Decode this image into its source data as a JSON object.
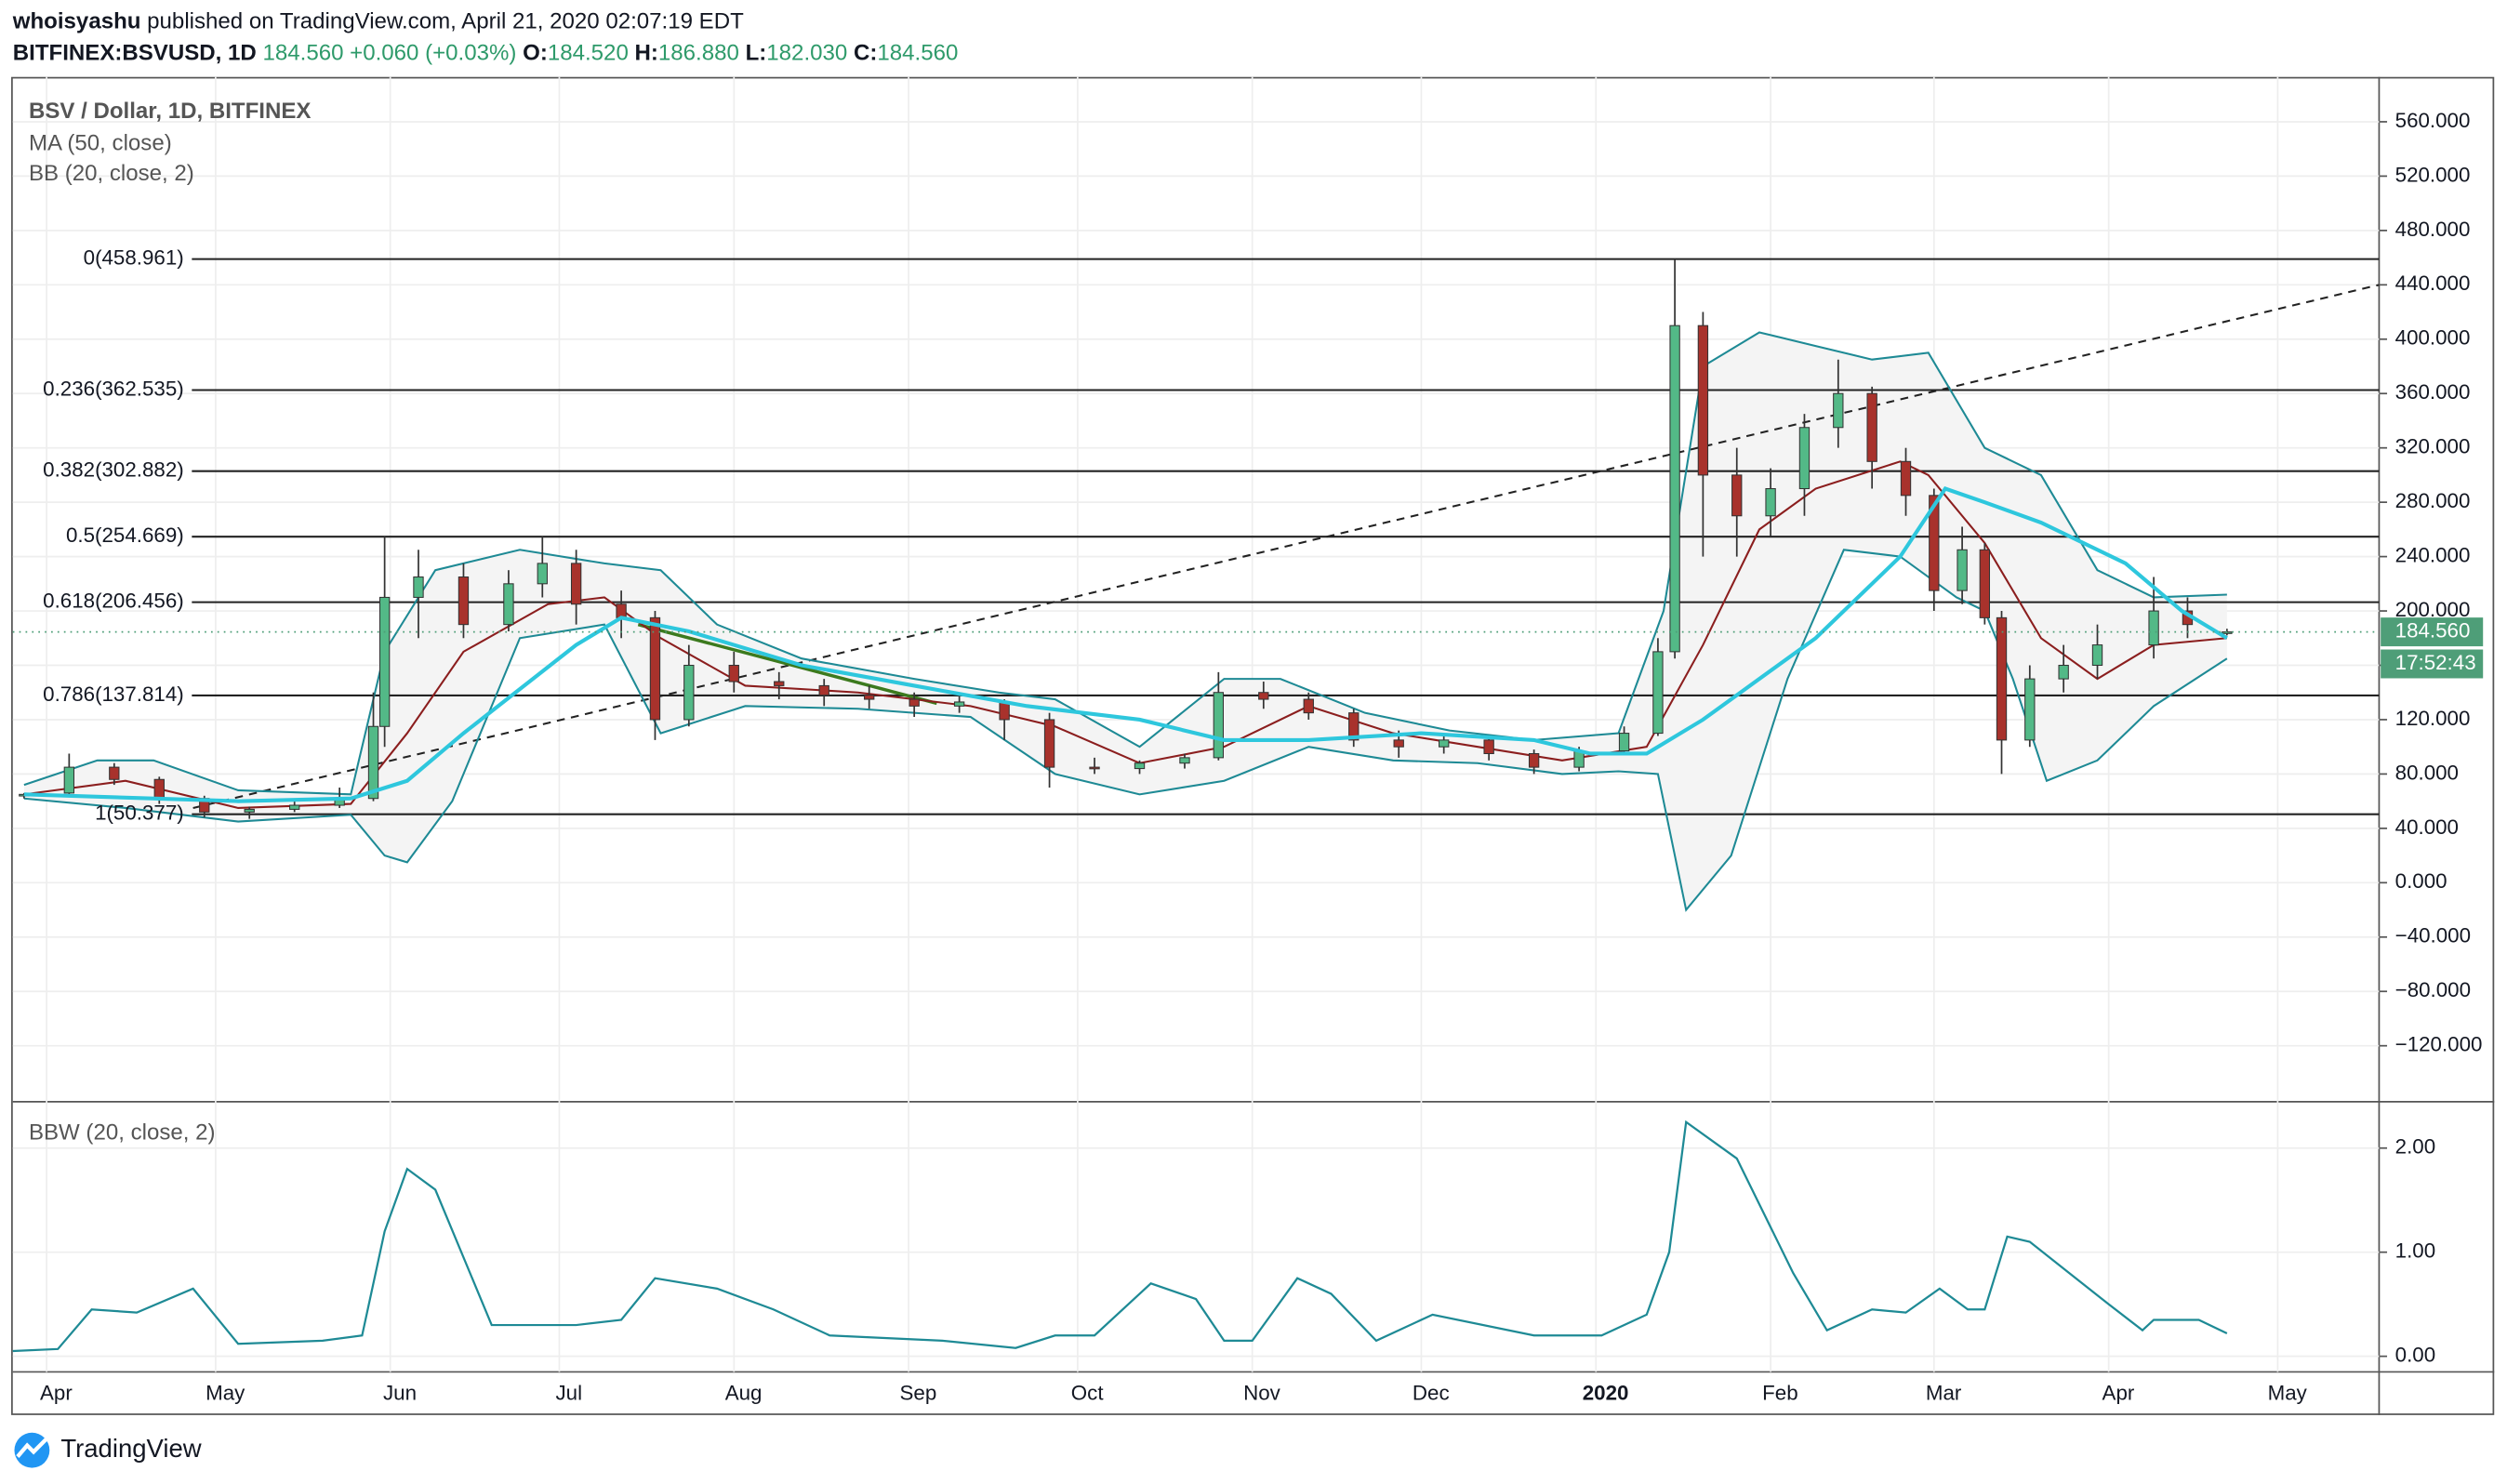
{
  "header": {
    "author": "whoisyashu",
    "published": "published on TradingView.com, April 21, 2020 02:07:19 EDT",
    "symbol": "BITFINEX:BSVUSD, 1D",
    "last": "184.560",
    "change": "+0.060 (+0.03%)",
    "o_label": "O:",
    "o": "184.520",
    "h_label": "H:",
    "h": "186.880",
    "l_label": "L:",
    "l": "182.030",
    "c_label": "C:",
    "c": "184.560"
  },
  "footer": {
    "brand": "TradingView"
  },
  "chart_data": {
    "type": "candlestick",
    "title": "BSV / Dollar, 1D, BITFINEX",
    "xlim": [
      0,
      420
    ],
    "xticks": [
      {
        "value": 6,
        "label": "Apr"
      },
      {
        "value": 36,
        "label": "May"
      },
      {
        "value": 67,
        "label": "Jun"
      },
      {
        "value": 97,
        "label": "Jul"
      },
      {
        "value": 128,
        "label": "Aug"
      },
      {
        "value": 159,
        "label": "Sep"
      },
      {
        "value": 189,
        "label": "Oct"
      },
      {
        "value": 220,
        "label": "Nov"
      },
      {
        "value": 250,
        "label": "Dec"
      },
      {
        "value": 281,
        "label": "2020"
      },
      {
        "value": 312,
        "label": "Feb"
      },
      {
        "value": 341,
        "label": "Mar"
      },
      {
        "value": 372,
        "label": "Apr"
      },
      {
        "value": 402,
        "label": "May"
      }
    ],
    "ylim": [
      -160,
      593
    ],
    "yticks": [
      {
        "value": 560,
        "label": "560.000"
      },
      {
        "value": 520,
        "label": "520.000"
      },
      {
        "value": 480,
        "label": "480.000"
      },
      {
        "value": 440,
        "label": "440.000"
      },
      {
        "value": 400,
        "label": "400.000"
      },
      {
        "value": 360,
        "label": "360.000"
      },
      {
        "value": 320,
        "label": "320.000"
      },
      {
        "value": 280,
        "label": "280.000"
      },
      {
        "value": 240,
        "label": "240.000"
      },
      {
        "value": 200,
        "label": "200.000"
      },
      {
        "value": 160,
        "label": "160.000"
      },
      {
        "value": 120,
        "label": "120.000"
      },
      {
        "value": 80,
        "label": "80.000"
      },
      {
        "value": 40,
        "label": "40.000"
      },
      {
        "value": 0,
        "label": "0.000"
      },
      {
        "value": -40,
        "label": "−40.000"
      },
      {
        "value": -80,
        "label": "−80.000"
      },
      {
        "value": -120,
        "label": "−120.000"
      }
    ],
    "grid": true,
    "up_color": "#53b987",
    "down_color": "#a8322c",
    "candles": {
      "x": [
        2,
        10,
        18,
        26,
        34,
        42,
        50,
        58,
        64,
        66,
        72,
        80,
        88,
        94,
        100,
        108,
        114,
        120,
        128,
        136,
        144,
        152,
        160,
        168,
        176,
        184,
        192,
        200,
        208,
        214,
        222,
        230,
        238,
        246,
        254,
        262,
        270,
        278,
        286,
        292,
        295,
        300,
        306,
        312,
        318,
        324,
        330,
        336,
        341,
        346,
        350,
        353,
        358,
        364,
        370,
        380,
        386,
        393
      ],
      "open": [
        64,
        66,
        85,
        76,
        62,
        52,
        54,
        57,
        62,
        115,
        210,
        225,
        190,
        220,
        235,
        205,
        195,
        120,
        160,
        148,
        145,
        138,
        135,
        130,
        133,
        120,
        85,
        84,
        88,
        92,
        140,
        135,
        125,
        105,
        100,
        105,
        95,
        85,
        97,
        110,
        170,
        410,
        300,
        270,
        290,
        335,
        360,
        310,
        285,
        215,
        245,
        195,
        105,
        150,
        160,
        175,
        200,
        184.52
      ],
      "high": [
        66,
        95,
        88,
        78,
        64,
        56,
        60,
        70,
        140,
        255,
        245,
        235,
        230,
        255,
        245,
        215,
        200,
        175,
        170,
        155,
        150,
        145,
        140,
        138,
        135,
        125,
        92,
        90,
        95,
        155,
        148,
        140,
        128,
        112,
        110,
        108,
        98,
        100,
        115,
        180,
        458.961,
        420,
        320,
        305,
        345,
        385,
        365,
        320,
        290,
        262,
        250,
        200,
        160,
        175,
        190,
        225,
        210,
        186.88
      ],
      "low": [
        62,
        64,
        72,
        58,
        48,
        47,
        52,
        55,
        60,
        100,
        180,
        180,
        185,
        210,
        190,
        180,
        105,
        115,
        140,
        135,
        130,
        128,
        122,
        125,
        105,
        70,
        80,
        80,
        84,
        90,
        128,
        120,
        100,
        92,
        95,
        90,
        80,
        82,
        95,
        108,
        165,
        240,
        240,
        255,
        270,
        320,
        290,
        270,
        200,
        205,
        190,
        80,
        100,
        140,
        150,
        165,
        180,
        182.03
      ],
      "close": [
        65,
        85,
        76,
        62,
        52,
        54,
        57,
        62,
        115,
        210,
        225,
        190,
        220,
        235,
        205,
        195,
        120,
        160,
        148,
        145,
        138,
        135,
        130,
        133,
        120,
        85,
        84,
        88,
        92,
        140,
        135,
        125,
        105,
        100,
        105,
        95,
        85,
        97,
        110,
        170,
        410,
        300,
        270,
        290,
        335,
        360,
        310,
        285,
        215,
        245,
        195,
        105,
        150,
        160,
        175,
        200,
        190,
        184.56
      ]
    },
    "ma": {
      "name": "MA (50, close)",
      "color": "#2ec7dd",
      "x": [
        2,
        40,
        60,
        70,
        80,
        100,
        108,
        120,
        140,
        160,
        180,
        200,
        215,
        230,
        250,
        270,
        280,
        290,
        300,
        320,
        335,
        343,
        350,
        360,
        375,
        385,
        393
      ],
      "values": [
        65,
        60,
        62,
        75,
        110,
        175,
        195,
        185,
        160,
        145,
        130,
        120,
        105,
        105,
        110,
        105,
        95,
        95,
        120,
        180,
        240,
        290,
        280,
        265,
        235,
        200,
        180
      ]
    },
    "bb": {
      "name": "BB (20, close, 2)",
      "basis_color": "#8b1e1e",
      "band_color": "#1e8a95",
      "fill": "#f4f4f4",
      "basis": {
        "x": [
          2,
          20,
          40,
          60,
          70,
          80,
          95,
          105,
          115,
          130,
          150,
          170,
          185,
          200,
          215,
          230,
          245,
          260,
          275,
          290,
          300,
          310,
          320,
          335,
          340,
          350,
          360,
          370,
          380,
          393
        ],
        "values": [
          65,
          75,
          55,
          58,
          110,
          170,
          205,
          210,
          180,
          145,
          140,
          130,
          115,
          88,
          100,
          130,
          110,
          100,
          90,
          100,
          175,
          260,
          290,
          310,
          300,
          250,
          180,
          150,
          175,
          180
        ]
      },
      "upper": {
        "x": [
          2,
          15,
          25,
          40,
          60,
          66,
          75,
          90,
          105,
          115,
          125,
          140,
          160,
          175,
          185,
          200,
          215,
          225,
          240,
          255,
          270,
          285,
          293,
          300,
          310,
          320,
          330,
          340,
          350,
          360,
          370,
          380,
          393
        ],
        "values": [
          72,
          90,
          90,
          68,
          65,
          170,
          230,
          245,
          235,
          230,
          190,
          165,
          150,
          140,
          135,
          100,
          150,
          150,
          125,
          112,
          105,
          110,
          200,
          380,
          405,
          395,
          385,
          390,
          320,
          300,
          230,
          210,
          212
        ]
      },
      "lower": {
        "x": [
          2,
          20,
          40,
          60,
          66,
          70,
          78,
          90,
          105,
          115,
          130,
          150,
          170,
          185,
          200,
          215,
          230,
          245,
          260,
          275,
          285,
          292,
          297,
          305,
          315,
          325,
          335,
          345,
          350,
          355,
          361,
          370,
          380,
          393
        ],
        "values": [
          62,
          55,
          45,
          50,
          20,
          15,
          60,
          180,
          190,
          110,
          130,
          128,
          122,
          80,
          65,
          75,
          100,
          90,
          88,
          80,
          82,
          80,
          -20,
          20,
          150,
          245,
          240,
          210,
          200,
          150,
          75,
          90,
          130,
          165
        ]
      }
    },
    "fib_levels": [
      {
        "label": "0(458.961)",
        "value": 458.961
      },
      {
        "label": "0.236(362.535)",
        "value": 362.535
      },
      {
        "label": "0.382(302.882)",
        "value": 302.882
      },
      {
        "label": "0.5(254.669)",
        "value": 254.669
      },
      {
        "label": "0.618(206.456)",
        "value": 206.456
      },
      {
        "label": "0.786(137.814)",
        "value": 137.814
      },
      {
        "label": "1(50.377)",
        "value": 50.377
      }
    ],
    "trendline": {
      "x": [
        32,
        420
      ],
      "values": [
        55,
        440
      ]
    },
    "downtrend": {
      "color": "#3c7a1e",
      "x": [
        111,
        164
      ],
      "values": [
        190,
        132
      ]
    },
    "price_line": {
      "value": 184.56,
      "label": "184.560",
      "timer": "17:52:43",
      "color": "#4e9e78"
    },
    "bbw": {
      "name": "BBW (20, close, 2)",
      "color": "#1e8a95",
      "ylim": [
        -0.15,
        2.43
      ],
      "yticks": [
        {
          "value": 2,
          "label": "2.00"
        },
        {
          "value": 1,
          "label": "1.00"
        },
        {
          "value": 0,
          "label": "0.00"
        }
      ],
      "x": [
        0,
        8,
        14,
        22,
        32,
        40,
        55,
        62,
        66,
        70,
        75,
        85,
        100,
        108,
        114,
        125,
        135,
        145,
        165,
        178,
        185,
        192,
        202,
        210,
        215,
        220,
        228,
        234,
        242,
        252,
        270,
        282,
        290,
        294,
        297,
        306,
        316,
        322,
        330,
        336,
        342,
        347,
        350,
        354,
        358,
        365,
        372,
        378,
        380,
        388,
        393
      ],
      "values": [
        0.05,
        0.07,
        0.45,
        0.42,
        0.65,
        0.12,
        0.15,
        0.2,
        1.2,
        1.8,
        1.6,
        0.3,
        0.3,
        0.35,
        0.75,
        0.65,
        0.45,
        0.2,
        0.15,
        0.08,
        0.2,
        0.2,
        0.7,
        0.55,
        0.15,
        0.15,
        0.75,
        0.6,
        0.15,
        0.4,
        0.2,
        0.2,
        0.4,
        1.0,
        2.25,
        1.9,
        0.8,
        0.25,
        0.45,
        0.42,
        0.65,
        0.45,
        0.45,
        1.15,
        1.1,
        0.8,
        0.5,
        0.25,
        0.35,
        0.35,
        0.22
      ]
    }
  }
}
